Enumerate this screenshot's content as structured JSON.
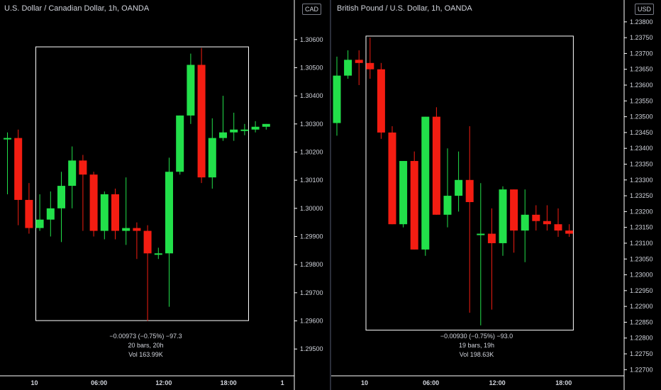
{
  "colors": {
    "up": "#22e04a",
    "down": "#f41d12",
    "background": "#000000",
    "axis_text": "#d1d4dc"
  },
  "left": {
    "title": "U.S. Dollar / Canadian Dollar, 1h, OANDA",
    "axis_currency": "CAD",
    "measure": {
      "change": "−0.00973 (−0.75%) −97.3",
      "bars": "20 bars, 20h",
      "volume": "Vol 163.99K"
    },
    "price_ticks": [
      "1.30600",
      "1.30500",
      "1.30400",
      "1.30300",
      "1.30200",
      "1.30100",
      "1.30000",
      "1.29900",
      "1.29800",
      "1.29700",
      "1.29600",
      "1.29500"
    ],
    "time_labels": [
      {
        "label": "10",
        "index": 2.5
      },
      {
        "label": "06:00",
        "index": 8.5
      },
      {
        "label": "12:00",
        "index": 14.5
      },
      {
        "label": "18:00",
        "index": 20.5
      },
      {
        "label": "1",
        "index": 25.5
      }
    ]
  },
  "right": {
    "title": "British Pound / U.S. Dollar, 1h, OANDA",
    "axis_currency": "USD",
    "measure": {
      "change": "−0.00930 (−0.75%) −93.0",
      "bars": "19 bars, 19h",
      "volume": "Vol 198.63K"
    },
    "price_ticks": [
      "1.23800",
      "1.23750",
      "1.23700",
      "1.23650",
      "1.23600",
      "1.23550",
      "1.23500",
      "1.23450",
      "1.23400",
      "1.23350",
      "1.23300",
      "1.23250",
      "1.23200",
      "1.23150",
      "1.23100",
      "1.23050",
      "1.23000",
      "1.22950",
      "1.22900",
      "1.22850",
      "1.22800",
      "1.22750",
      "1.22700"
    ],
    "time_labels": [
      {
        "label": "10",
        "index": 2.5
      },
      {
        "label": "06:00",
        "index": 8.5
      },
      {
        "label": "12:00",
        "index": 14.5
      },
      {
        "label": "18:00",
        "index": 20.5
      }
    ]
  },
  "chart_data": [
    {
      "type": "candlestick",
      "title": "U.S. Dollar / Canadian Dollar, 1h, OANDA",
      "ylim": [
        1.2944,
        1.3067
      ],
      "measure_range": {
        "from_index": 3,
        "to_index": 22,
        "high": 1.30574,
        "low": 1.29601
      },
      "candles": [
        {
          "o": 1.3025,
          "h": 1.3027,
          "l": 1.3005,
          "c": 1.3025
        },
        {
          "o": 1.3025,
          "h": 1.3028,
          "l": 1.2994,
          "c": 1.3003
        },
        {
          "o": 1.3003,
          "h": 1.3009,
          "l": 1.2991,
          "c": 1.2993
        },
        {
          "o": 1.2993,
          "h": 1.3005,
          "l": 1.2992,
          "c": 1.2996
        },
        {
          "o": 1.2996,
          "h": 1.3006,
          "l": 1.299,
          "c": 1.3
        },
        {
          "o": 1.3,
          "h": 1.3013,
          "l": 1.2988,
          "c": 1.3008
        },
        {
          "o": 1.3008,
          "h": 1.3022,
          "l": 1.3,
          "c": 1.3017
        },
        {
          "o": 1.3017,
          "h": 1.3019,
          "l": 1.2992,
          "c": 1.3012
        },
        {
          "o": 1.3012,
          "h": 1.3013,
          "l": 1.299,
          "c": 1.2992
        },
        {
          "o": 1.2992,
          "h": 1.3006,
          "l": 1.2989,
          "c": 1.3005
        },
        {
          "o": 1.3005,
          "h": 1.3007,
          "l": 1.2989,
          "c": 1.2992
        },
        {
          "o": 1.2992,
          "h": 1.3011,
          "l": 1.2987,
          "c": 1.2993
        },
        {
          "o": 1.2993,
          "h": 1.2995,
          "l": 1.2982,
          "c": 1.2992
        },
        {
          "o": 1.2992,
          "h": 1.2994,
          "l": 1.296,
          "c": 1.2984
        },
        {
          "o": 1.2984,
          "h": 1.2986,
          "l": 1.2982,
          "c": 1.2984
        },
        {
          "o": 1.2984,
          "h": 1.3018,
          "l": 1.2965,
          "c": 1.3013
        },
        {
          "o": 1.3013,
          "h": 1.3033,
          "l": 1.3012,
          "c": 1.3033
        },
        {
          "o": 1.3033,
          "h": 1.3055,
          "l": 1.303,
          "c": 1.3051
        },
        {
          "o": 1.3051,
          "h": 1.3057,
          "l": 1.3009,
          "c": 1.3011
        },
        {
          "o": 1.3011,
          "h": 1.3032,
          "l": 1.3007,
          "c": 1.3025
        },
        {
          "o": 1.3025,
          "h": 1.304,
          "l": 1.3024,
          "c": 1.3027
        },
        {
          "o": 1.3027,
          "h": 1.3034,
          "l": 1.3024,
          "c": 1.3028
        },
        {
          "o": 1.3028,
          "h": 1.303,
          "l": 1.3026,
          "c": 1.3028
        },
        {
          "o": 1.3028,
          "h": 1.3031,
          "l": 1.3027,
          "c": 1.3029
        },
        {
          "o": 1.3029,
          "h": 1.303,
          "l": 1.3028,
          "c": 1.303
        }
      ]
    },
    {
      "type": "candlestick",
      "title": "British Pound / U.S. Dollar, 1h, OANDA",
      "ylim": [
        1.22685,
        1.2384
      ],
      "measure_range": {
        "from_index": 3,
        "to_index": 21,
        "high": 1.23755,
        "low": 1.22825
      },
      "candles": [
        {
          "o": 1.2348,
          "h": 1.2369,
          "l": 1.2344,
          "c": 1.2363
        },
        {
          "o": 1.2363,
          "h": 1.2371,
          "l": 1.2362,
          "c": 1.2368
        },
        {
          "o": 1.2368,
          "h": 1.2371,
          "l": 1.236,
          "c": 1.2367
        },
        {
          "o": 1.2367,
          "h": 1.2375,
          "l": 1.2362,
          "c": 1.2365
        },
        {
          "o": 1.2365,
          "h": 1.2367,
          "l": 1.2343,
          "c": 1.2345
        },
        {
          "o": 1.2345,
          "h": 1.2347,
          "l": 1.2316,
          "c": 1.2316
        },
        {
          "o": 1.2316,
          "h": 1.2336,
          "l": 1.2315,
          "c": 1.2336
        },
        {
          "o": 1.2336,
          "h": 1.2339,
          "l": 1.2308,
          "c": 1.2308
        },
        {
          "o": 1.2308,
          "h": 1.235,
          "l": 1.2306,
          "c": 1.235
        },
        {
          "o": 1.235,
          "h": 1.2353,
          "l": 1.2319,
          "c": 1.2319
        },
        {
          "o": 1.2319,
          "h": 1.234,
          "l": 1.2315,
          "c": 1.2325
        },
        {
          "o": 1.2325,
          "h": 1.2339,
          "l": 1.232,
          "c": 1.233
        },
        {
          "o": 1.233,
          "h": 1.2347,
          "l": 1.2288,
          "c": 1.2323
        },
        {
          "o": 1.2313,
          "h": 1.2329,
          "l": 1.2284,
          "c": 1.2313
        },
        {
          "o": 1.2313,
          "h": 1.2321,
          "l": 1.2289,
          "c": 1.231
        },
        {
          "o": 1.231,
          "h": 1.2328,
          "l": 1.2306,
          "c": 1.2327
        },
        {
          "o": 1.2327,
          "h": 1.2327,
          "l": 1.2307,
          "c": 1.2314
        },
        {
          "o": 1.2314,
          "h": 1.2327,
          "l": 1.2304,
          "c": 1.2319
        },
        {
          "o": 1.2319,
          "h": 1.2322,
          "l": 1.2314,
          "c": 1.2317
        },
        {
          "o": 1.2317,
          "h": 1.2322,
          "l": 1.2314,
          "c": 1.2316
        },
        {
          "o": 1.2316,
          "h": 1.2321,
          "l": 1.2312,
          "c": 1.2314
        },
        {
          "o": 1.2314,
          "h": 1.2316,
          "l": 1.2312,
          "c": 1.2313
        }
      ]
    }
  ]
}
